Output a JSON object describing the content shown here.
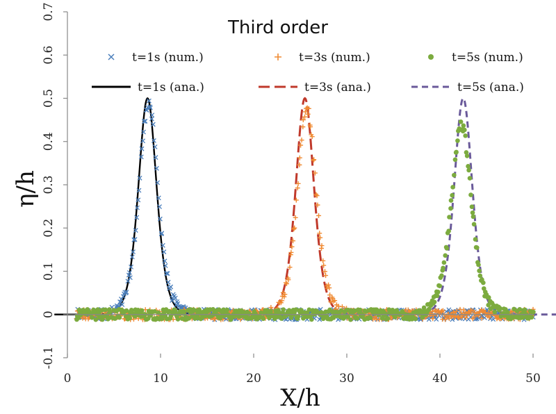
{
  "chart_data": {
    "type": "line",
    "title": "Third order",
    "xlabel": "X/h",
    "ylabel": "η/h",
    "xlim": [
      0,
      50
    ],
    "ylim": [
      -0.1,
      0.7
    ],
    "xticks": [
      "0",
      "10",
      "20",
      "30",
      "40",
      "50"
    ],
    "yticks": [
      "-0.1",
      "0",
      "0.1",
      "0.2",
      "0.3",
      "0.4",
      "0.5",
      "0.6",
      "0.7"
    ],
    "grid": false,
    "legend_position": "top",
    "series": [
      {
        "name": "t=1s (num.)",
        "kind": "scatter",
        "marker": "x",
        "color": "#4a7ebb",
        "peak_x": 8.7,
        "amplitude": 0.49,
        "width": 1.35,
        "noise": 0.012,
        "x_range": [
          1,
          50
        ]
      },
      {
        "name": "t=3s (num.)",
        "kind": "scatter",
        "marker": "+",
        "color": "#f08a32",
        "peak_x": 25.7,
        "amplitude": 0.48,
        "width": 1.35,
        "noise": 0.012,
        "x_range": [
          1,
          50
        ]
      },
      {
        "name": "t=5s (num.)",
        "kind": "scatter",
        "marker": "circle",
        "color": "#7cab3f",
        "peak_x": 42.3,
        "amplitude": 0.44,
        "width": 1.45,
        "noise": 0.012,
        "x_range": [
          1,
          50
        ]
      },
      {
        "name": "t=1s (ana.)",
        "kind": "line",
        "dash": "solid",
        "color": "#000000",
        "peak_x": 8.6,
        "amplitude": 0.5,
        "width": 1.3
      },
      {
        "name": "t=3s (ana.)",
        "kind": "line",
        "dash": "long-dash",
        "color": "#c0392b",
        "peak_x": 25.5,
        "amplitude": 0.5,
        "width": 1.3
      },
      {
        "name": "t=5s (ana.)",
        "kind": "line",
        "dash": "dash",
        "color": "#6a5a9a",
        "peak_x": 42.5,
        "amplitude": 0.5,
        "width": 1.3
      }
    ]
  }
}
